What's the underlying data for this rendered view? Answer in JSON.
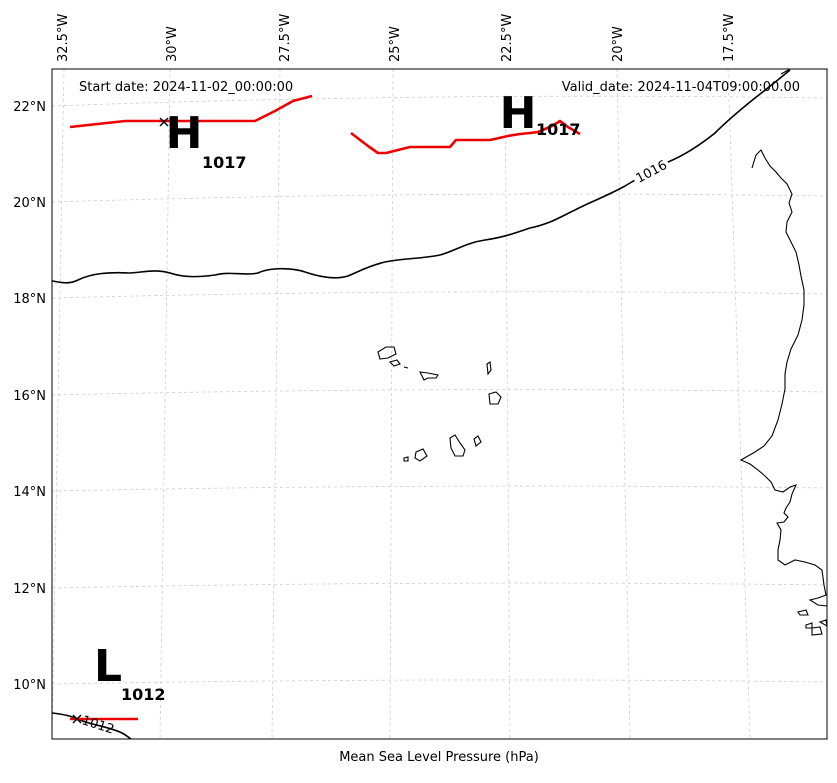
{
  "header": {
    "start_date": "Start date: 2024-11-02_00:00:00",
    "valid_date": "Valid_date: 2024-11-04T09:00:00.00"
  },
  "caption": "Mean Sea Level Pressure (hPa)",
  "longitude_labels": [
    "32.5°W",
    "30°W",
    "27.5°W",
    "25°W",
    "22.5°W",
    "20°W",
    "17.5°W"
  ],
  "latitude_labels": [
    "22°N",
    "20°N",
    "18°N",
    "16°N",
    "14°N",
    "12°N",
    "10°N"
  ],
  "pressure_centers": [
    {
      "type": "H",
      "value": "1017"
    },
    {
      "type": "H",
      "value": "1017"
    },
    {
      "type": "L",
      "value": "1012"
    }
  ],
  "isobar_labels": [
    "1016",
    "1012"
  ],
  "colors": {
    "isobar": "#000000",
    "ridge_trough_line": "#ee0000",
    "grid": "#cccccc",
    "coastline": "#000000"
  }
}
